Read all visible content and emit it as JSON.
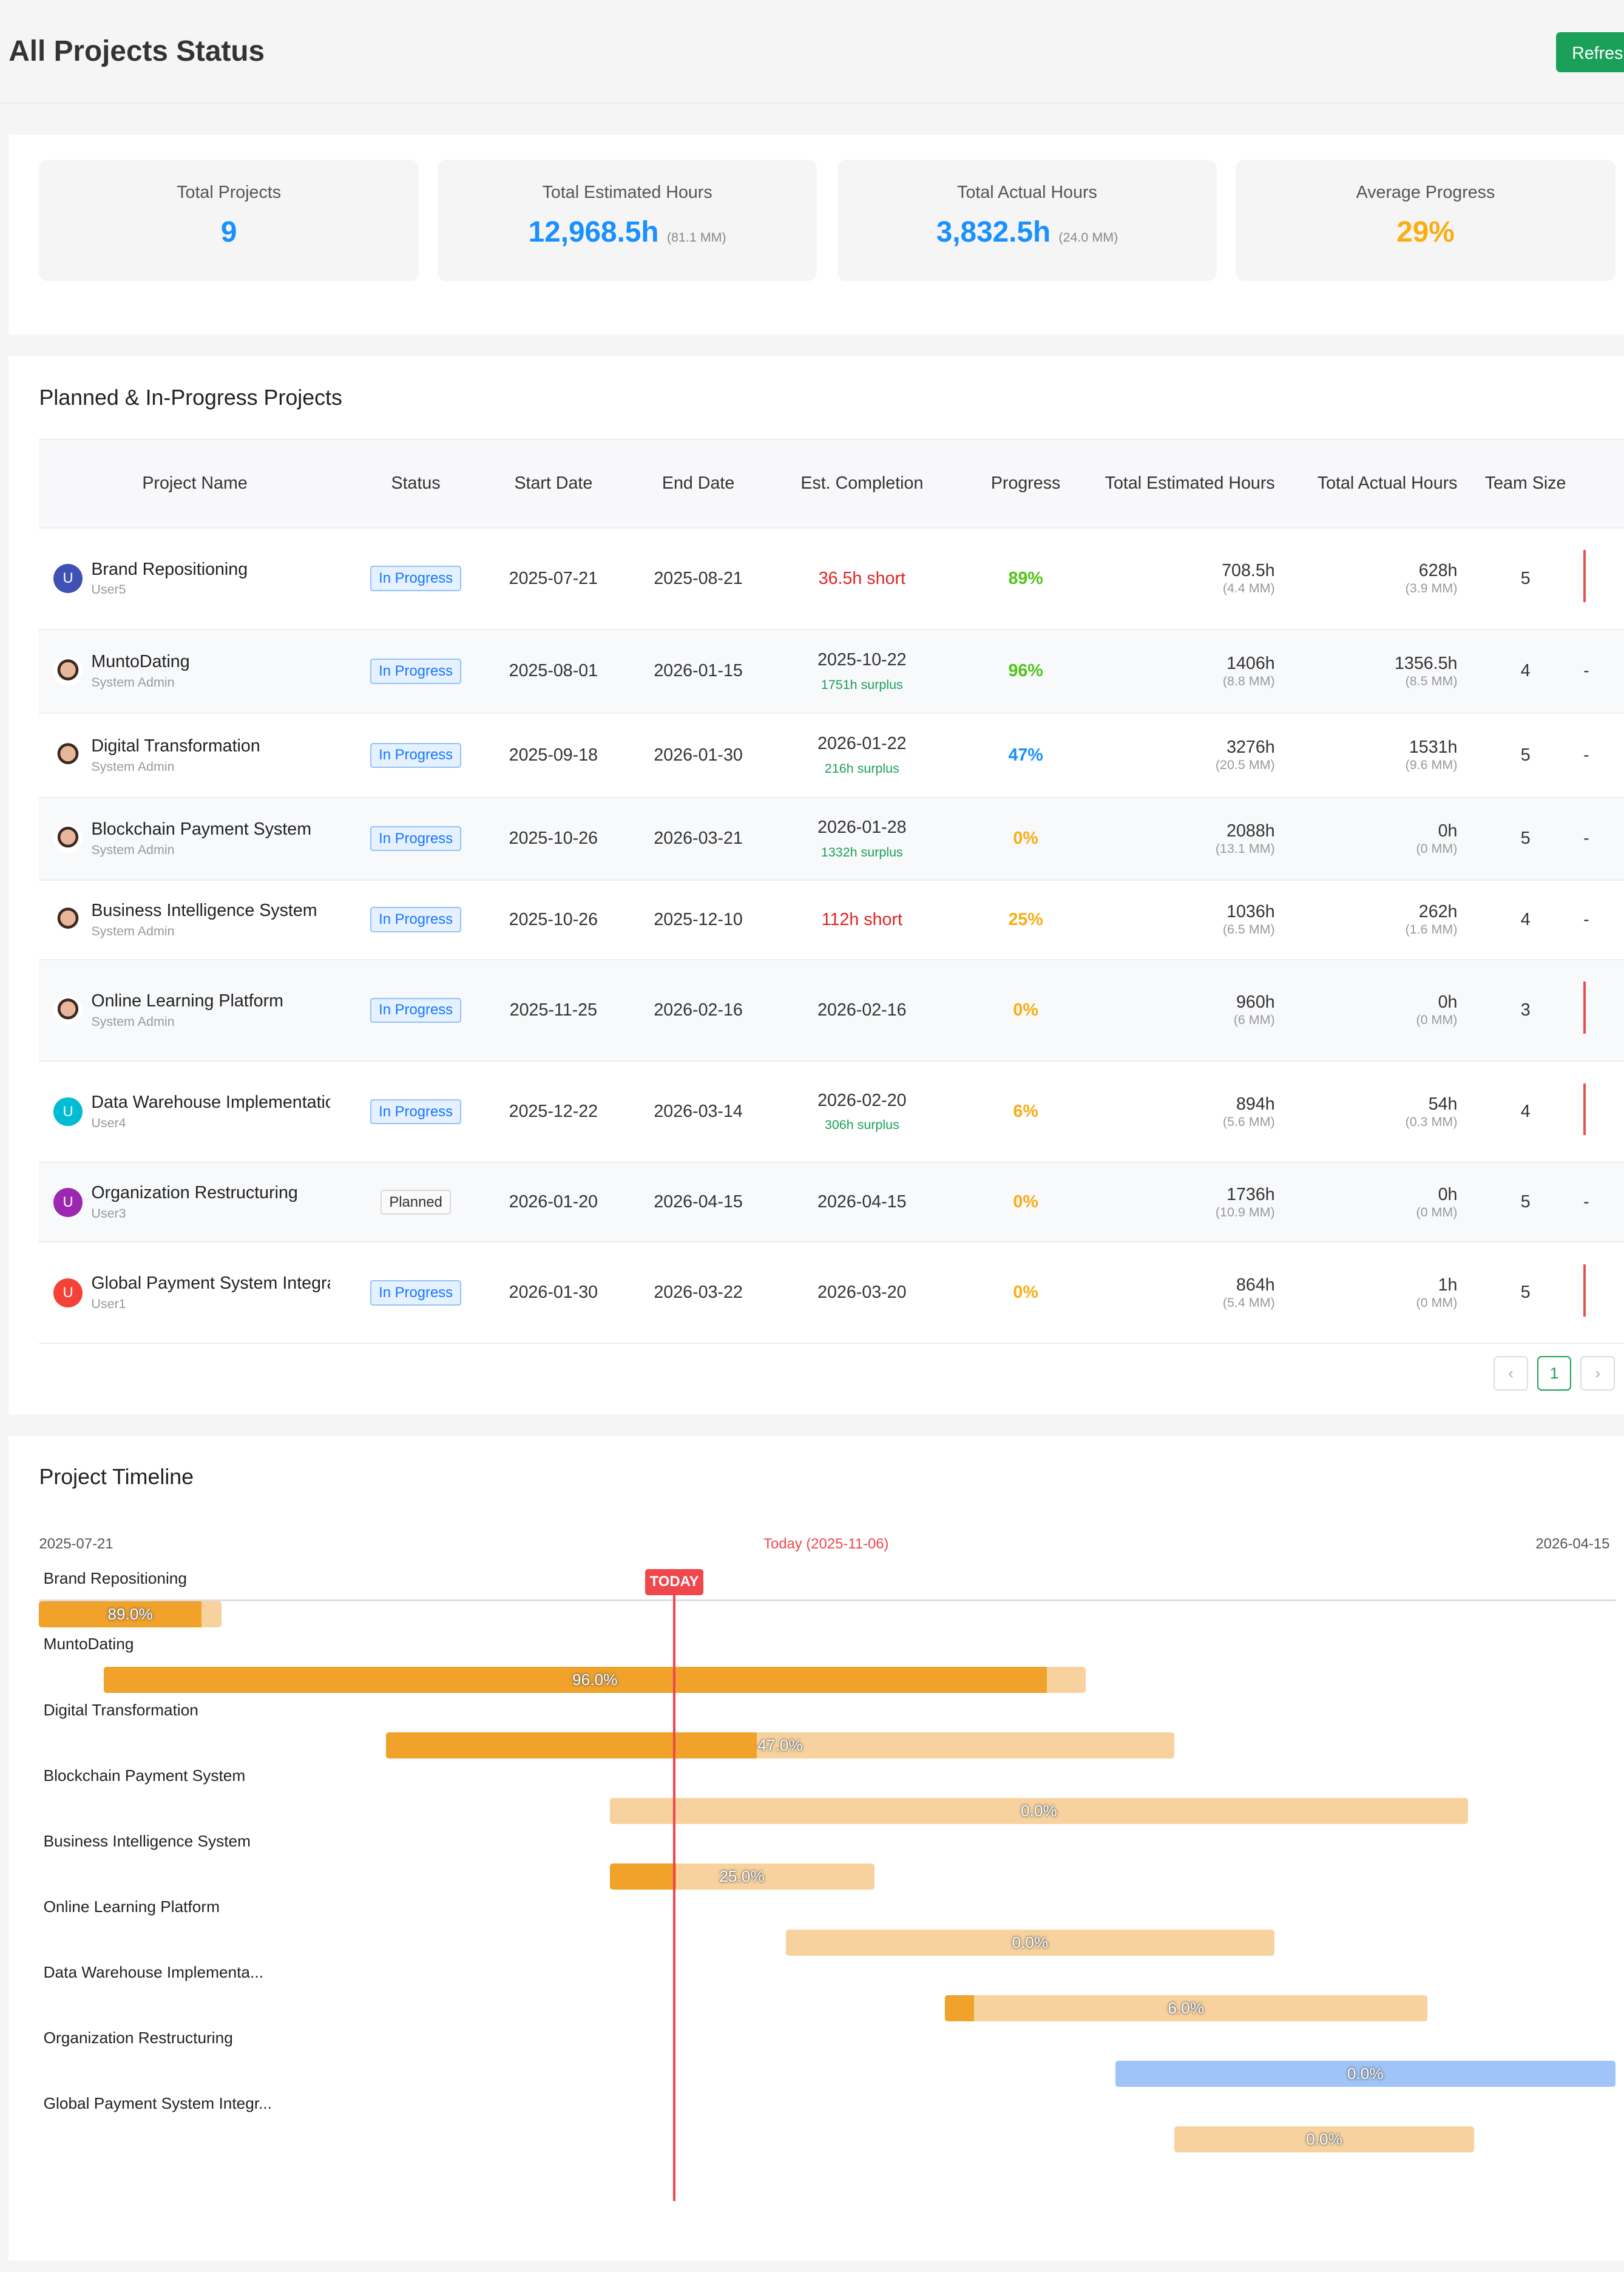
{
  "header": {
    "title": "All Projects Status",
    "refresh_label": "Refresh"
  },
  "stats": [
    {
      "label": "Total Projects",
      "value": "9",
      "sub": ""
    },
    {
      "label": "Total Estimated Hours",
      "value": "12,968.5h",
      "sub": "(81.1 MM)"
    },
    {
      "label": "Total Actual Hours",
      "value": "3,832.5h",
      "sub": "(24.0 MM)"
    },
    {
      "label": "Average Progress",
      "value": "29%",
      "sub": ""
    }
  ],
  "colors": {
    "primary": "#1890ff",
    "warning": "#faad14",
    "success": "#52c41a",
    "danger": "#e02424",
    "brand": "#1aa058",
    "bar_done": "#f0a22a",
    "bar_remaining": "#f7d29e",
    "bar_planned": "#a0c4f7",
    "today": "#f0474d"
  },
  "table": {
    "title": "Planned & In-Progress Projects",
    "columns": [
      "Project Name",
      "Status",
      "Start Date",
      "End Date",
      "Est. Completion",
      "Progress",
      "Total Estimated Hours",
      "Total Actual Hours",
      "Team Size"
    ],
    "rows": [
      {
        "name": "Brand Repositioning",
        "owner": "User5",
        "avatar": "U",
        "avatar_color": "#3f51b5",
        "status": "In Progress",
        "start": "2025-07-21",
        "end": "2025-08-21",
        "est": "36.5h short",
        "est_note": "",
        "est_type": "short",
        "progress": "89%",
        "progress_color": "#52c41a",
        "est_hours": "708.5h",
        "est_mm": "(4.4 MM)",
        "act_hours": "628h",
        "act_mm": "(3.9 MM)",
        "team": "5",
        "extra": ""
      },
      {
        "name": "MuntoDating",
        "owner": "System Admin",
        "avatar": "",
        "avatar_color": "",
        "status": "In Progress",
        "start": "2025-08-01",
        "end": "2026-01-15",
        "est": "2025-10-22",
        "est_note": "1751h surplus",
        "est_type": "date",
        "progress": "96%",
        "progress_color": "#52c41a",
        "est_hours": "1406h",
        "est_mm": "(8.8 MM)",
        "act_hours": "1356.5h",
        "act_mm": "(8.5 MM)",
        "team": "4",
        "extra": "-"
      },
      {
        "name": "Digital Transformation",
        "owner": "System Admin",
        "avatar": "",
        "avatar_color": "",
        "status": "In Progress",
        "start": "2025-09-18",
        "end": "2026-01-30",
        "est": "2026-01-22",
        "est_note": "216h surplus",
        "est_type": "date",
        "progress": "47%",
        "progress_color": "#1890ff",
        "est_hours": "3276h",
        "est_mm": "(20.5 MM)",
        "act_hours": "1531h",
        "act_mm": "(9.6 MM)",
        "team": "5",
        "extra": "-"
      },
      {
        "name": "Blockchain Payment System",
        "owner": "System Admin",
        "avatar": "",
        "avatar_color": "",
        "status": "In Progress",
        "start": "2025-10-26",
        "end": "2026-03-21",
        "est": "2026-01-28",
        "est_note": "1332h surplus",
        "est_type": "date",
        "progress": "0%",
        "progress_color": "#faad14",
        "est_hours": "2088h",
        "est_mm": "(13.1 MM)",
        "act_hours": "0h",
        "act_mm": "(0 MM)",
        "team": "5",
        "extra": "-"
      },
      {
        "name": "Business Intelligence System",
        "owner": "System Admin",
        "avatar": "",
        "avatar_color": "",
        "status": "In Progress",
        "start": "2025-10-26",
        "end": "2025-12-10",
        "est": "112h short",
        "est_note": "",
        "est_type": "short",
        "progress": "25%",
        "progress_color": "#faad14",
        "est_hours": "1036h",
        "est_mm": "(6.5 MM)",
        "act_hours": "262h",
        "act_mm": "(1.6 MM)",
        "team": "4",
        "extra": "-"
      },
      {
        "name": "Online Learning Platform",
        "owner": "System Admin",
        "avatar": "",
        "avatar_color": "",
        "status": "In Progress",
        "start": "2025-11-25",
        "end": "2026-02-16",
        "est": "2026-02-16",
        "est_note": "",
        "est_type": "date",
        "progress": "0%",
        "progress_color": "#faad14",
        "est_hours": "960h",
        "est_mm": "(6 MM)",
        "act_hours": "0h",
        "act_mm": "(0 MM)",
        "team": "3",
        "extra": ""
      },
      {
        "name": "Data Warehouse Implementation",
        "owner": "User4",
        "avatar": "U",
        "avatar_color": "#00bcd4",
        "status": "In Progress",
        "start": "2025-12-22",
        "end": "2026-03-14",
        "est": "2026-02-20",
        "est_note": "306h surplus",
        "est_type": "date",
        "progress": "6%",
        "progress_color": "#faad14",
        "est_hours": "894h",
        "est_mm": "(5.6 MM)",
        "act_hours": "54h",
        "act_mm": "(0.3 MM)",
        "team": "4",
        "extra": ""
      },
      {
        "name": "Organization Restructuring",
        "owner": "User3",
        "avatar": "U",
        "avatar_color": "#9c27b0",
        "status": "Planned",
        "start": "2026-01-20",
        "end": "2026-04-15",
        "est": "2026-04-15",
        "est_note": "",
        "est_type": "date",
        "progress": "0%",
        "progress_color": "#faad14",
        "est_hours": "1736h",
        "est_mm": "(10.9 MM)",
        "act_hours": "0h",
        "act_mm": "(0 MM)",
        "team": "5",
        "extra": "-"
      },
      {
        "name": "Global Payment System Integration",
        "owner": "User1",
        "avatar": "U",
        "avatar_color": "#f44336",
        "status": "In Progress",
        "start": "2026-01-30",
        "end": "2026-03-22",
        "est": "2026-03-20",
        "est_note": "",
        "est_type": "date",
        "progress": "0%",
        "progress_color": "#faad14",
        "est_hours": "864h",
        "est_mm": "(5.4 MM)",
        "act_hours": "1h",
        "act_mm": "(0 MM)",
        "team": "5",
        "extra": ""
      }
    ],
    "pagination": {
      "current": "1"
    }
  },
  "timeline": {
    "title": "Project Timeline",
    "start_label": "2025-07-21",
    "end_label": "2026-04-15",
    "today_label": "Today (2025-11-06)",
    "today_badge": "TODAY",
    "range_start": "2025-07-21",
    "range_end": "2026-04-15",
    "today": "2025-11-06",
    "items": [
      {
        "label": "Brand Repositioning",
        "start": "2025-07-21",
        "end": "2025-08-21",
        "progress": 89.0,
        "pct": "89.0%",
        "planned": false
      },
      {
        "label": "MuntoDating",
        "start": "2025-08-01",
        "end": "2026-01-15",
        "progress": 96.0,
        "pct": "96.0%",
        "planned": false
      },
      {
        "label": "Digital Transformation",
        "start": "2025-09-18",
        "end": "2026-01-30",
        "progress": 47.0,
        "pct": "47.0%",
        "planned": false
      },
      {
        "label": "Blockchain Payment System",
        "start": "2025-10-26",
        "end": "2026-03-21",
        "progress": 0,
        "pct": "0.0%",
        "planned": false
      },
      {
        "label": "Business Intelligence System",
        "start": "2025-10-26",
        "end": "2025-12-10",
        "progress": 25.0,
        "pct": "25.0%",
        "planned": false
      },
      {
        "label": "Online Learning Platform",
        "start": "2025-11-25",
        "end": "2026-02-16",
        "progress": 0,
        "pct": "0.0%",
        "planned": false
      },
      {
        "label": "Data Warehouse Implementa...",
        "start": "2025-12-22",
        "end": "2026-03-14",
        "progress": 6.0,
        "pct": "6.0%",
        "planned": false
      },
      {
        "label": "Organization Restructuring",
        "start": "2026-01-20",
        "end": "2026-04-15",
        "progress": 0,
        "pct": "0.0%",
        "planned": true
      },
      {
        "label": "Global Payment System Integr...",
        "start": "2026-01-30",
        "end": "2026-03-22",
        "progress": 0,
        "pct": "0.0%",
        "planned": false
      }
    ]
  }
}
